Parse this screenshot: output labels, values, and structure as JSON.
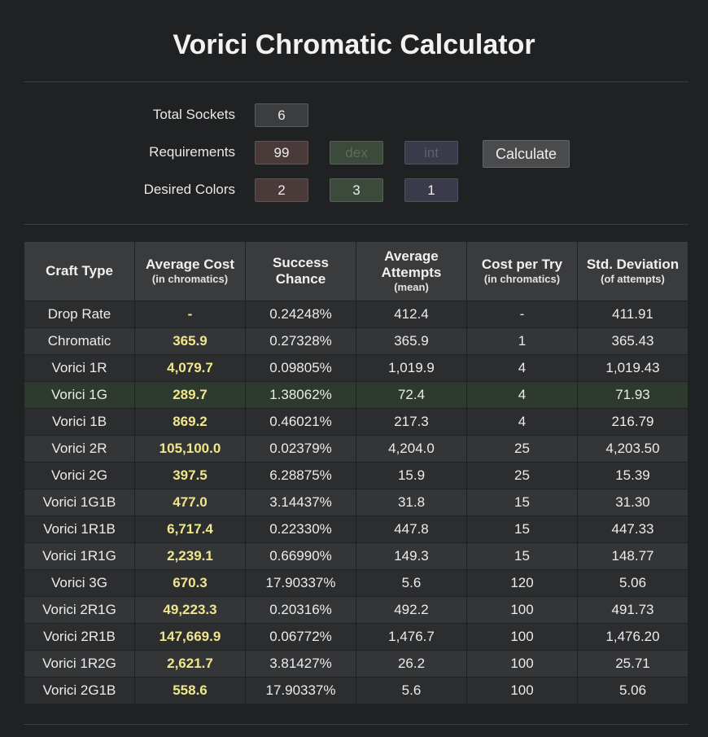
{
  "title": "Vorici Chromatic Calculator",
  "form": {
    "total_sockets_label": "Total Sockets",
    "total_sockets_value": "6",
    "requirements_label": "Requirements",
    "req_str_value": "99",
    "req_dex_placeholder": "dex",
    "req_int_placeholder": "int",
    "calculate_label": "Calculate",
    "desired_colors_label": "Desired Colors",
    "desired_red": "2",
    "desired_green": "3",
    "desired_blue": "1"
  },
  "table": {
    "headers": [
      {
        "main": "Craft Type",
        "sub": ""
      },
      {
        "main": "Average Cost",
        "sub": "(in chromatics)"
      },
      {
        "main": "Success Chance",
        "sub": ""
      },
      {
        "main": "Average Attempts",
        "sub": "(mean)"
      },
      {
        "main": "Cost per Try",
        "sub": "(in chromatics)"
      },
      {
        "main": "Std. Deviation",
        "sub": "(of attempts)"
      }
    ],
    "rows": [
      [
        "Drop Rate",
        "-",
        "0.24248%",
        "412.4",
        "-",
        "411.91"
      ],
      [
        "Chromatic",
        "365.9",
        "0.27328%",
        "365.9",
        "1",
        "365.43"
      ],
      [
        "Vorici 1R",
        "4,079.7",
        "0.09805%",
        "1,019.9",
        "4",
        "1,019.43"
      ],
      [
        "Vorici 1G",
        "289.7",
        "1.38062%",
        "72.4",
        "4",
        "71.93"
      ],
      [
        "Vorici 1B",
        "869.2",
        "0.46021%",
        "217.3",
        "4",
        "216.79"
      ],
      [
        "Vorici 2R",
        "105,100.0",
        "0.02379%",
        "4,204.0",
        "25",
        "4,203.50"
      ],
      [
        "Vorici 2G",
        "397.5",
        "6.28875%",
        "15.9",
        "25",
        "15.39"
      ],
      [
        "Vorici 1G1B",
        "477.0",
        "3.14437%",
        "31.8",
        "15",
        "31.30"
      ],
      [
        "Vorici 1R1B",
        "6,717.4",
        "0.22330%",
        "447.8",
        "15",
        "447.33"
      ],
      [
        "Vorici 1R1G",
        "2,239.1",
        "0.66990%",
        "149.3",
        "15",
        "148.77"
      ],
      [
        "Vorici 3G",
        "670.3",
        "17.90337%",
        "5.6",
        "120",
        "5.06"
      ],
      [
        "Vorici 2R1G",
        "49,223.3",
        "0.20316%",
        "492.2",
        "100",
        "491.73"
      ],
      [
        "Vorici 2R1B",
        "147,669.9",
        "0.06772%",
        "1,476.7",
        "100",
        "1,476.20"
      ],
      [
        "Vorici 1R2G",
        "2,621.7",
        "3.81427%",
        "26.2",
        "100",
        "25.71"
      ],
      [
        "Vorici 2G1B",
        "558.6",
        "17.90337%",
        "5.6",
        "100",
        "5.06"
      ]
    ],
    "highlight_row": 3
  },
  "colors": {
    "background": "#202122",
    "cost_text": "#f0e68c",
    "highlight_row": "#2e3a2e",
    "red_box": "#4a3a3a",
    "green_box": "#3b4a3b",
    "blue_box": "#3a3a4a"
  }
}
